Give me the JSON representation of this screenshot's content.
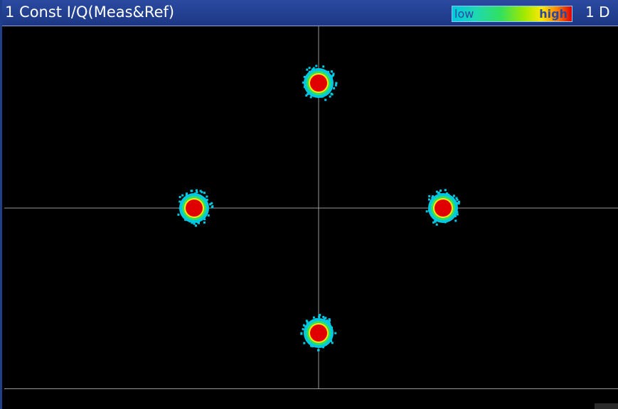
{
  "window": {
    "title": "1 Const I/Q(Meas&Ref)",
    "id_label": "1 D"
  },
  "color_scale": {
    "low_label": "low",
    "high_label": "high",
    "colors": [
      "#00c8e0",
      "#30e060",
      "#ffe800",
      "#e00000"
    ]
  },
  "constellation": {
    "points": [
      {
        "i": 0,
        "q": 1
      },
      {
        "i": -1,
        "q": 0
      },
      {
        "i": 1,
        "q": 0
      },
      {
        "i": 0,
        "q": -1
      }
    ],
    "range": [
      -1.25,
      1.25
    ],
    "grid": "crosshair",
    "background": "#000000",
    "axis_color": "#9a9a9a"
  }
}
